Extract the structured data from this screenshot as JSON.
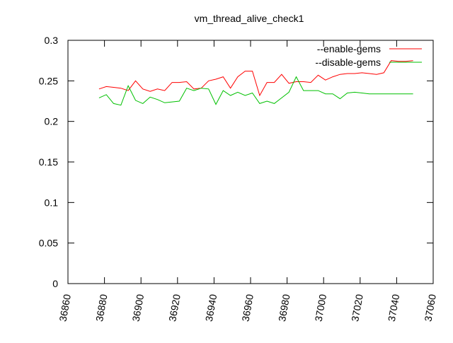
{
  "chart_data": {
    "type": "line",
    "title": "vm_thread_alive_check1",
    "xlim": [
      36860,
      37060
    ],
    "ylim": [
      0,
      0.3
    ],
    "x_ticks": [
      36860,
      36880,
      36900,
      36920,
      36940,
      36960,
      36980,
      37000,
      37020,
      37040,
      37060
    ],
    "y_ticks": [
      0,
      0.05,
      0.1,
      0.15,
      0.2,
      0.25,
      0.3
    ],
    "x_tick_labels": [
      "36860",
      "36880",
      "36900",
      "36920",
      "36940",
      "36960",
      "36980",
      "37000",
      "37020",
      "37040",
      "37060"
    ],
    "y_tick_labels": [
      "0",
      "0.05",
      "0.1",
      "0.15",
      "0.2",
      "0.25",
      "0.3"
    ],
    "grid": false,
    "legend_position": "top-right",
    "x": [
      36877,
      36881,
      36885,
      36889,
      36893,
      36897,
      36901,
      36905,
      36909,
      36913,
      36917,
      36921,
      36925,
      36929,
      36933,
      36937,
      36941,
      36945,
      36949,
      36953,
      36957,
      36961,
      36965,
      36969,
      36973,
      36977,
      36981,
      36985,
      36989,
      36993,
      36997,
      37001,
      37005,
      37009,
      37013,
      37017,
      37021,
      37025,
      37029,
      37033,
      37037,
      37041,
      37045,
      37049
    ],
    "series": [
      {
        "name": "--enable-gems",
        "color": "#ff0000",
        "values": [
          0.24,
          0.243,
          0.242,
          0.241,
          0.238,
          0.25,
          0.24,
          0.237,
          0.24,
          0.238,
          0.248,
          0.248,
          0.249,
          0.24,
          0.241,
          0.25,
          0.252,
          0.255,
          0.241,
          0.255,
          0.262,
          0.262,
          0.232,
          0.248,
          0.248,
          0.258,
          0.247,
          0.249,
          0.249,
          0.248,
          0.257,
          0.251,
          0.255,
          0.258,
          0.259,
          0.259,
          0.26,
          0.259,
          0.258,
          0.26,
          0.275,
          0.274,
          0.274,
          0.275
        ]
      },
      {
        "name": "--disable-gems",
        "color": "#00c000",
        "values": [
          0.229,
          0.233,
          0.222,
          0.22,
          0.244,
          0.226,
          0.222,
          0.23,
          0.227,
          0.223,
          0.224,
          0.225,
          0.241,
          0.238,
          0.241,
          0.24,
          0.221,
          0.238,
          0.232,
          0.236,
          0.232,
          0.235,
          0.222,
          0.225,
          0.222,
          0.229,
          0.236,
          0.255,
          0.238,
          0.238,
          0.238,
          0.234,
          0.234,
          0.228,
          0.235,
          0.236,
          0.235,
          0.234,
          0.234,
          0.234,
          0.234,
          0.234,
          0.234,
          0.234
        ]
      }
    ]
  }
}
